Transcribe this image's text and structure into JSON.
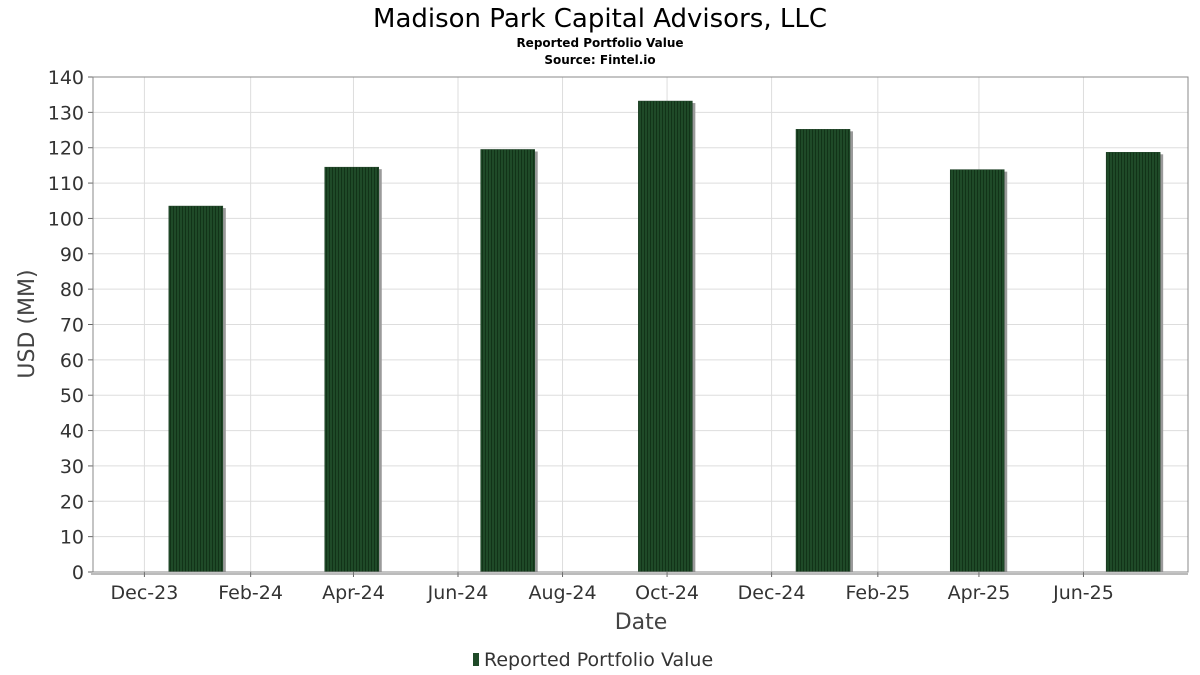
{
  "chart_data": {
    "type": "bar",
    "title": "Madison Park Capital Advisors, LLC",
    "subtitle": "Reported Portfolio Value",
    "source": "Source: Fintel.io",
    "xlabel": "Date",
    "ylabel": "USD (MM)",
    "ylim": [
      0,
      140
    ],
    "yticks": [
      0,
      10,
      20,
      30,
      40,
      50,
      60,
      70,
      80,
      90,
      100,
      110,
      120,
      130,
      140
    ],
    "xtick_labels": [
      "Dec-23",
      "Feb-24",
      "Apr-24",
      "Jun-24",
      "Aug-24",
      "Oct-24",
      "Dec-24",
      "Feb-25",
      "Apr-25",
      "Jun-25"
    ],
    "grid": true,
    "legend": "bottom-center",
    "series": [
      {
        "name": "Reported Portfolio Value",
        "color": "#1f4a28",
        "points": [
          {
            "date": "2023-12-31",
            "value": 103.5
          },
          {
            "date": "2024-03-31",
            "value": 114.5
          },
          {
            "date": "2024-06-30",
            "value": 119.5
          },
          {
            "date": "2024-09-30",
            "value": 133.2
          },
          {
            "date": "2024-12-31",
            "value": 125.2
          },
          {
            "date": "2025-03-31",
            "value": 113.8
          },
          {
            "date": "2025-06-30",
            "value": 118.7
          }
        ]
      }
    ]
  }
}
